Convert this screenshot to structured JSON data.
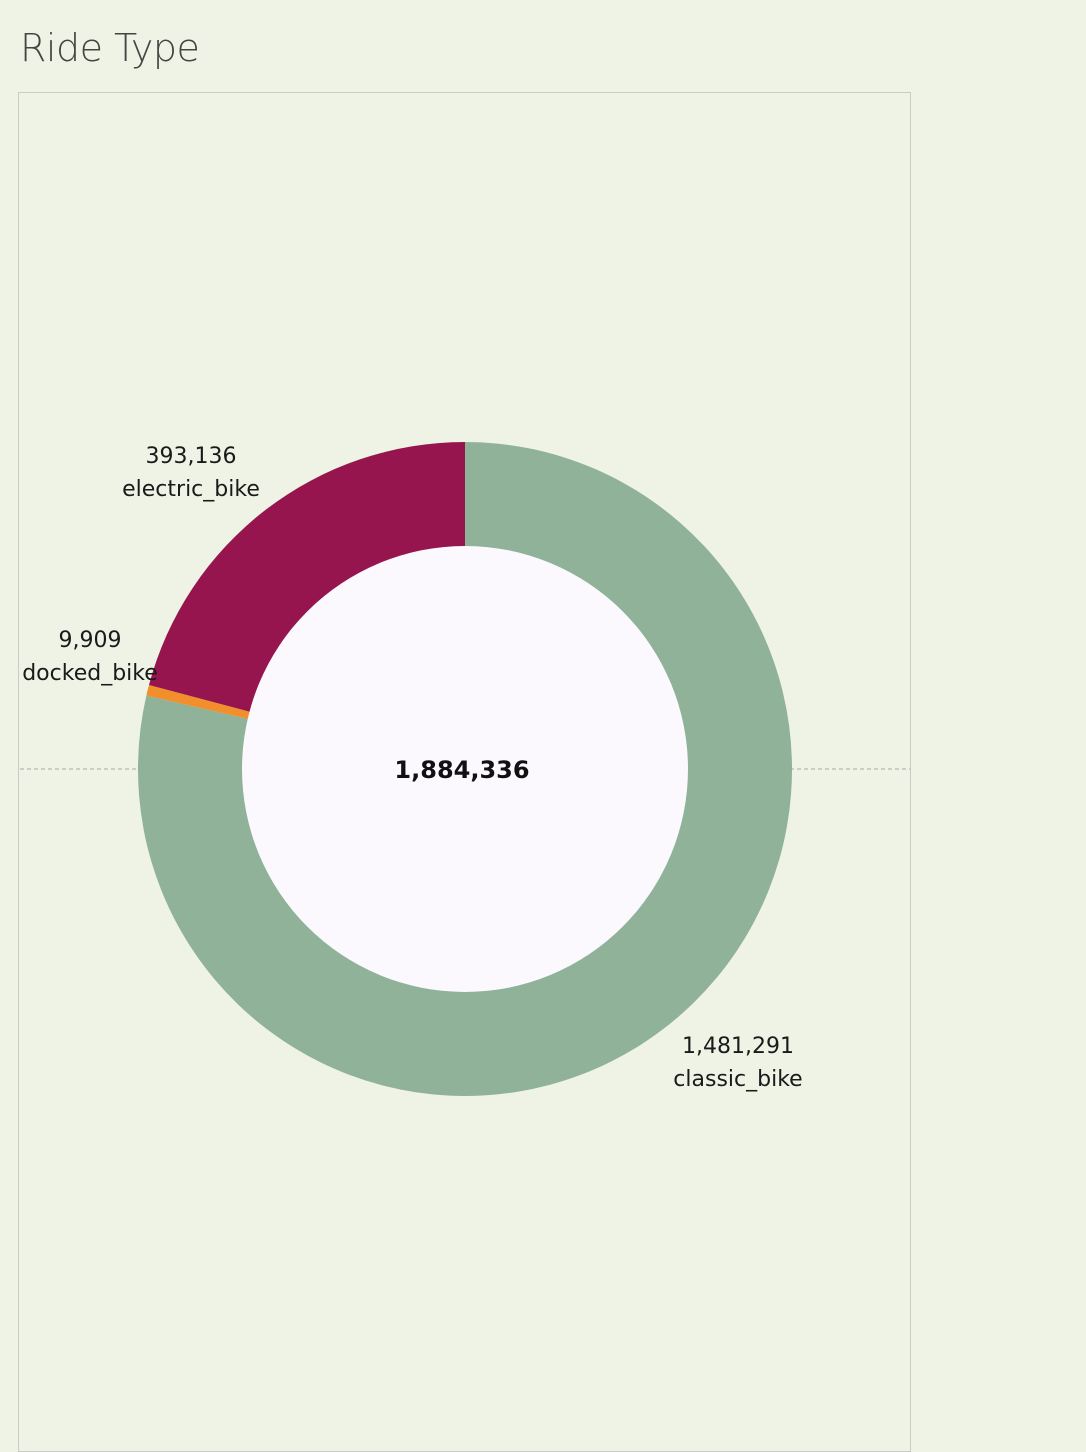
{
  "title": "Ride Type",
  "chart_data": {
    "type": "pie",
    "donut": true,
    "title": "Ride Type",
    "total": 1884336,
    "total_label": "1,884,336",
    "slices": [
      {
        "name": "classic_bike",
        "value": 1481291,
        "value_label": "1,481,291",
        "color": "#8fb299"
      },
      {
        "name": "docked_bike",
        "value": 9909,
        "value_label": "9,909",
        "color": "#f28e2b"
      },
      {
        "name": "electric_bike",
        "value": 393136,
        "value_label": "393,136",
        "color": "#96154f"
      }
    ],
    "center_color": "#fbf8fe",
    "reference_line": true
  }
}
